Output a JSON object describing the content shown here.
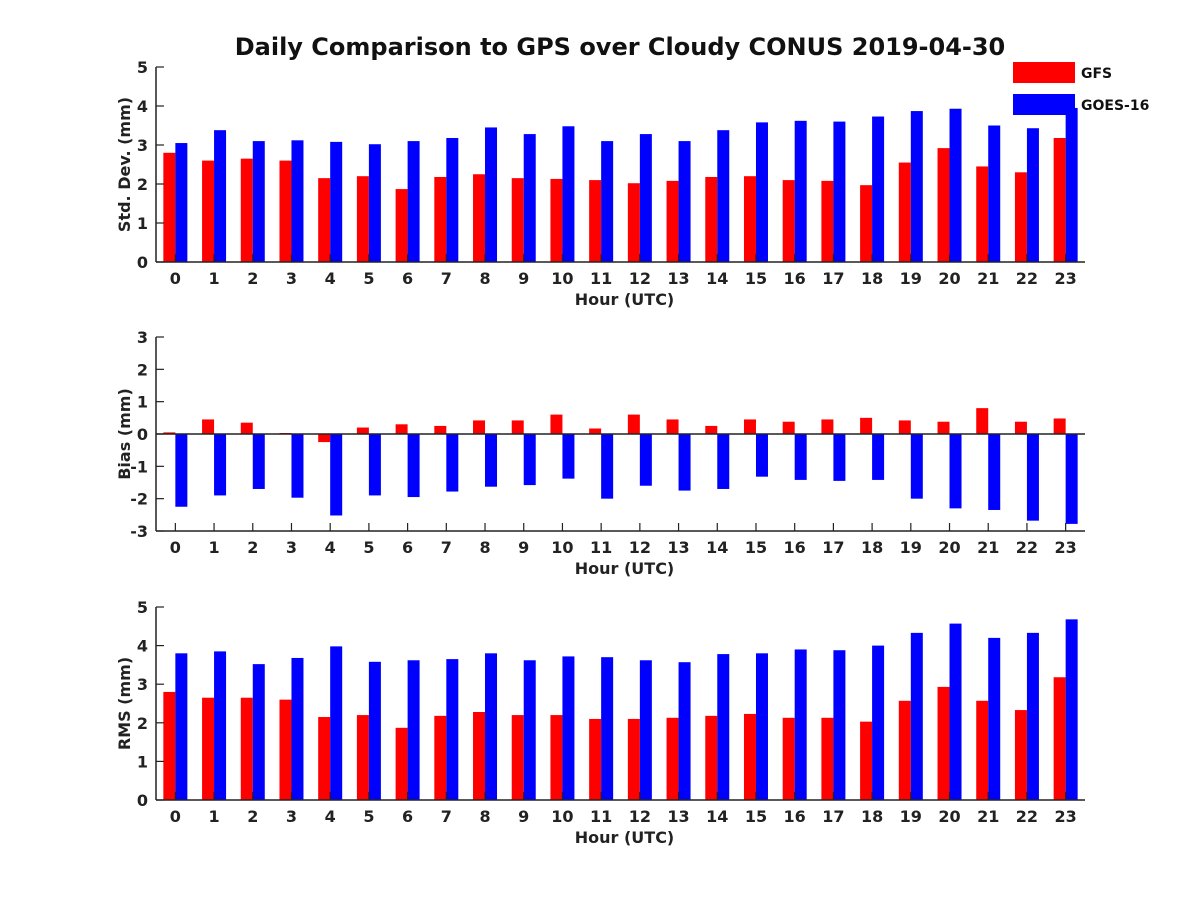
{
  "figure_title": "Daily Comparison to GPS over Cloudy CONUS 2019-04-30",
  "legend": [
    {
      "name": "GFS",
      "color": "#ff0000"
    },
    {
      "name": "GOES-16",
      "color": "#0000ff"
    }
  ],
  "chart_data": [
    {
      "type": "bar",
      "xlabel": "Hour (UTC)",
      "ylabel": "Std. Dev. (mm)",
      "ylim": [
        0,
        5
      ],
      "yticks": [
        0,
        1,
        2,
        3,
        4,
        5
      ],
      "categories": [
        "0",
        "1",
        "2",
        "3",
        "4",
        "5",
        "6",
        "7",
        "8",
        "9",
        "10",
        "11",
        "12",
        "13",
        "14",
        "15",
        "16",
        "17",
        "18",
        "19",
        "20",
        "21",
        "22",
        "23"
      ],
      "series": [
        {
          "name": "GFS",
          "color": "#ff0000",
          "values": [
            2.8,
            2.6,
            2.65,
            2.6,
            2.15,
            2.2,
            1.87,
            2.18,
            2.25,
            2.15,
            2.13,
            2.1,
            2.02,
            2.08,
            2.18,
            2.2,
            2.1,
            2.08,
            1.97,
            2.55,
            2.92,
            2.45,
            2.3,
            3.18
          ]
        },
        {
          "name": "GOES-16",
          "color": "#0000ff",
          "values": [
            3.05,
            3.38,
            3.1,
            3.12,
            3.08,
            3.02,
            3.1,
            3.18,
            3.45,
            3.28,
            3.48,
            3.1,
            3.28,
            3.1,
            3.38,
            3.58,
            3.62,
            3.6,
            3.73,
            3.87,
            3.93,
            3.5,
            3.43,
            3.95
          ]
        }
      ]
    },
    {
      "type": "bar",
      "xlabel": "Hour (UTC)",
      "ylabel": "Bias (mm)",
      "ylim": [
        -3,
        3
      ],
      "yticks": [
        -3,
        -2,
        -1,
        0,
        1,
        2,
        3
      ],
      "zero_line": true,
      "categories": [
        "0",
        "1",
        "2",
        "3",
        "4",
        "5",
        "6",
        "7",
        "8",
        "9",
        "10",
        "11",
        "12",
        "13",
        "14",
        "15",
        "16",
        "17",
        "18",
        "19",
        "20",
        "21",
        "22",
        "23"
      ],
      "series": [
        {
          "name": "GFS",
          "color": "#ff0000",
          "values": [
            0.05,
            0.45,
            0.35,
            0.03,
            -0.25,
            0.2,
            0.3,
            0.25,
            0.42,
            0.42,
            0.6,
            0.17,
            0.6,
            0.45,
            0.25,
            0.45,
            0.38,
            0.45,
            0.5,
            0.42,
            0.38,
            0.8,
            0.38,
            0.48
          ]
        },
        {
          "name": "GOES-16",
          "color": "#0000ff",
          "values": [
            -2.25,
            -1.9,
            -1.7,
            -1.97,
            -2.52,
            -1.9,
            -1.95,
            -1.78,
            -1.63,
            -1.58,
            -1.38,
            -2.0,
            -1.6,
            -1.75,
            -1.7,
            -1.32,
            -1.42,
            -1.45,
            -1.42,
            -2.0,
            -2.3,
            -2.35,
            -2.68,
            -2.78
          ]
        }
      ]
    },
    {
      "type": "bar",
      "xlabel": "Hour (UTC)",
      "ylabel": "RMS (mm)",
      "ylim": [
        0,
        5
      ],
      "yticks": [
        0,
        1,
        2,
        3,
        4,
        5
      ],
      "categories": [
        "0",
        "1",
        "2",
        "3",
        "4",
        "5",
        "6",
        "7",
        "8",
        "9",
        "10",
        "11",
        "12",
        "13",
        "14",
        "15",
        "16",
        "17",
        "18",
        "19",
        "20",
        "21",
        "22",
        "23"
      ],
      "series": [
        {
          "name": "GFS",
          "color": "#ff0000",
          "values": [
            2.8,
            2.65,
            2.65,
            2.6,
            2.15,
            2.2,
            1.87,
            2.18,
            2.28,
            2.2,
            2.2,
            2.1,
            2.1,
            2.13,
            2.18,
            2.23,
            2.13,
            2.13,
            2.03,
            2.57,
            2.93,
            2.57,
            2.33,
            3.18
          ]
        },
        {
          "name": "GOES-16",
          "color": "#0000ff",
          "values": [
            3.8,
            3.85,
            3.52,
            3.68,
            3.98,
            3.58,
            3.62,
            3.65,
            3.8,
            3.62,
            3.72,
            3.7,
            3.62,
            3.57,
            3.78,
            3.8,
            3.9,
            3.88,
            4.0,
            4.33,
            4.57,
            4.2,
            4.33,
            4.68
          ]
        }
      ]
    }
  ]
}
